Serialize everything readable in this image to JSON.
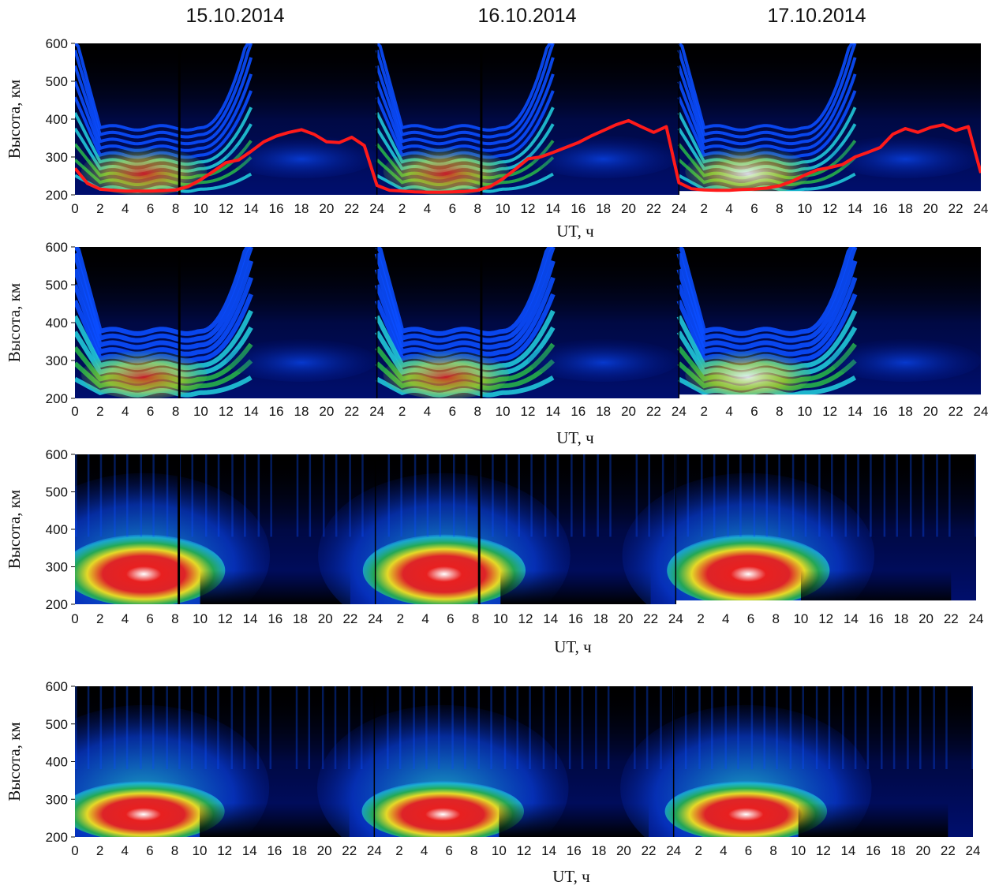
{
  "dates": [
    "15.10.2014",
    "16.10.2014",
    "17.10.2014"
  ],
  "chart_data": [
    {
      "type": "heatmap",
      "panel": 1,
      "ylabel": "Высота, км",
      "xlabel": "UT, ч",
      "ylim": [
        200,
        600
      ],
      "yticks": [
        "200",
        "300",
        "400",
        "500",
        "600"
      ],
      "xticks_per_day": [
        "0",
        "2",
        "4",
        "6",
        "8",
        "10",
        "12",
        "14",
        "16",
        "18",
        "20",
        "22",
        "24"
      ],
      "days": [
        "15.10.2014",
        "16.10.2014",
        "17.10.2014"
      ],
      "pattern": "layered",
      "colors": [
        "#000000",
        "#00107a",
        "#0a4cff",
        "#20c8d8",
        "#26b04a",
        "#f0e020",
        "#e82020",
        "#ffffff"
      ],
      "overlay_line": {
        "color": "#ff1a1a",
        "x": [
          0,
          1,
          2,
          3,
          4,
          5,
          6,
          7,
          8,
          9,
          10,
          11,
          12,
          13,
          14,
          15,
          16,
          17,
          18,
          19,
          20,
          21,
          22,
          23,
          24,
          25,
          26,
          27,
          28,
          29,
          30,
          31,
          32,
          33,
          34,
          35,
          36,
          37,
          38,
          39,
          40,
          41,
          42,
          43,
          44,
          45,
          46,
          47,
          48,
          49,
          50,
          51,
          52,
          53,
          54,
          55,
          56,
          57,
          58,
          59,
          60,
          61,
          62,
          63,
          64,
          65,
          66,
          67,
          68,
          69,
          70,
          71,
          72
        ],
        "y": [
          270,
          230,
          215,
          212,
          210,
          210,
          210,
          211,
          213,
          222,
          240,
          262,
          285,
          292,
          315,
          340,
          355,
          365,
          372,
          360,
          340,
          338,
          352,
          330,
          225,
          212,
          210,
          208,
          207,
          207,
          208,
          209,
          212,
          222,
          242,
          268,
          295,
          300,
          312,
          325,
          338,
          355,
          370,
          385,
          396,
          380,
          365,
          380,
          232,
          216,
          213,
          212,
          212,
          214,
          215,
          218,
          224,
          236,
          252,
          266,
          272,
          280,
          300,
          312,
          325,
          360,
          375,
          365,
          378,
          385,
          370,
          380,
          258
        ]
      },
      "active": [
        [
          [
            0,
            24,
            200,
            600
          ]
        ],
        [
          [
            0,
            24,
            200,
            600
          ]
        ],
        [
          [
            0,
            24,
            200,
            600
          ]
        ]
      ],
      "blank_strip": [
        [
          48,
          72,
          200,
          210
        ]
      ],
      "dark_lines": [
        [
          8.2,
          32.2
        ]
      ]
    },
    {
      "type": "heatmap",
      "panel": 2,
      "ylabel": "Высота, км",
      "xlabel": "UT, ч",
      "ylim": [
        200,
        600
      ],
      "yticks": [
        "200",
        "300",
        "400",
        "500",
        "600"
      ],
      "xticks_per_day": [
        "0",
        "2",
        "4",
        "6",
        "8",
        "10",
        "12",
        "14",
        "16",
        "18",
        "20",
        "22",
        "24"
      ],
      "days": [
        "15.10.2014",
        "16.10.2014",
        "17.10.2014"
      ],
      "pattern": "layered-smooth",
      "colors": [
        "#000000",
        "#00107a",
        "#0a4cff",
        "#20c8d8",
        "#26b04a",
        "#f0e020",
        "#e82020",
        "#ffffff"
      ],
      "blank_strip": [
        [
          48,
          72,
          200,
          210
        ]
      ],
      "dark_lines": [
        [
          8.2,
          32.2
        ]
      ]
    },
    {
      "type": "heatmap",
      "panel": 3,
      "ylabel": "Высота, км",
      "xlabel": "UT, ч",
      "ylim": [
        200,
        600
      ],
      "yticks": [
        "200",
        "300",
        "400",
        "500",
        "600"
      ],
      "xticks_per_day": [
        "0",
        "2",
        "4",
        "6",
        "8",
        "10",
        "12",
        "14",
        "16",
        "18",
        "20",
        "22",
        "24"
      ],
      "days": [
        "15.10.2014",
        "16.10.2014",
        "17.10.2014"
      ],
      "pattern": "blob",
      "colors": [
        "#000000",
        "#00107a",
        "#0a4cff",
        "#20c8d8",
        "#26b04a",
        "#f0e020",
        "#e82020",
        "#ffffff"
      ],
      "blank_strip": [
        [
          48,
          72,
          200,
          210
        ]
      ],
      "dark_lines": [
        [
          8.2,
          32.2
        ]
      ]
    },
    {
      "type": "heatmap",
      "panel": 4,
      "ylabel": "Высота, км",
      "xlabel": "UT, ч",
      "ylim": [
        200,
        600
      ],
      "yticks": [
        "200",
        "300",
        "400",
        "500",
        "600"
      ],
      "xticks_per_day": [
        "0",
        "2",
        "4",
        "6",
        "8",
        "10",
        "12",
        "14",
        "16",
        "18",
        "20",
        "22",
        "24"
      ],
      "days": [
        "15.10.2014",
        "16.10.2014",
        "17.10.2014"
      ],
      "pattern": "blob-smooth",
      "colors": [
        "#000000",
        "#00107a",
        "#0a4cff",
        "#20c8d8",
        "#26b04a",
        "#f0e020",
        "#e82020",
        "#ffffff"
      ]
    }
  ]
}
